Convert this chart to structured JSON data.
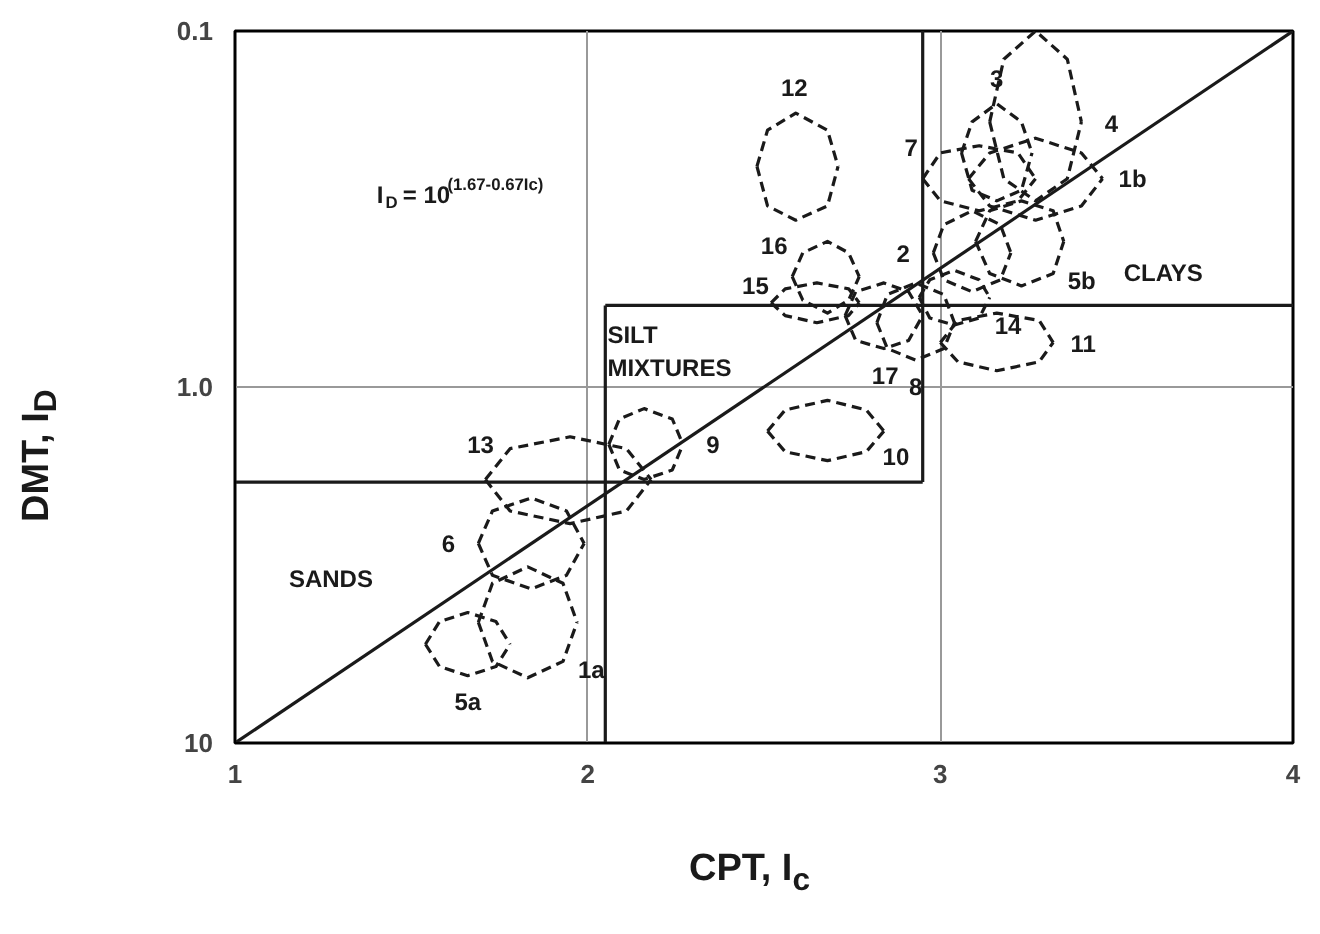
{
  "chart_data": {
    "type": "line",
    "xlabel": "CPT, I$_{c}$",
    "ylabel": "DMT, I$_{D}$",
    "log": "y",
    "xlim": [
      1,
      4
    ],
    "ylim": [
      10,
      0.1
    ],
    "xticks": [
      1,
      2,
      3,
      4
    ],
    "yticks": [
      0.1,
      {
        "value": 1,
        "label": "1.0"
      },
      10
    ],
    "grid": true,
    "series": [
      {
        "color": "#1a1a1a",
        "x": [
          1,
          2.95
        ],
        "values": [
          1.85,
          1.85
        ]
      },
      {
        "color": "#1a1a1a",
        "x": [
          2.05,
          2.05
        ],
        "values": [
          0.59,
          10
        ]
      },
      {
        "color": "#1a1a1a",
        "x": [
          2.05,
          4
        ],
        "values": [
          0.59,
          0.59
        ]
      },
      {
        "color": "#1a1a1a",
        "x": [
          2.95,
          2.95
        ],
        "values": [
          0.1,
          1.85
        ]
      },
      {
        "color": "#1a1a1a",
        "x": [
          1,
          4
        ],
        "values": [
          10,
          0.1
        ]
      },
      {
        "color": "#1a1a1a",
        "line_style": "dashed",
        "x": [
          3.08,
          3.14,
          3.27,
          3.4,
          3.46
        ],
        "values": [
          0.26,
          0.22,
          0.2,
          0.22,
          0.26
        ]
      },
      {
        "color": "#1a1a1a",
        "line_style": "dashed",
        "x": [
          3.08,
          3.14,
          3.27,
          3.4,
          3.46
        ],
        "values": [
          0.26,
          0.31,
          0.34,
          0.31,
          0.26
        ]
      },
      {
        "color": "#1a1a1a",
        "line_style": "dashed",
        "x": [
          3.06,
          3.09,
          3.16,
          3.23,
          3.26
        ],
        "values": [
          0.22,
          0.18,
          0.16,
          0.18,
          0.22
        ]
      },
      {
        "color": "#1a1a1a",
        "line_style": "dashed",
        "x": [
          3.06,
          3.09,
          3.16,
          3.23,
          3.26
        ],
        "values": [
          0.22,
          0.28,
          0.3,
          0.28,
          0.22
        ]
      },
      {
        "color": "#1a1a1a",
        "line_style": "dashed",
        "x": [
          2.95,
          3.0,
          3.11,
          3.22,
          3.27
        ],
        "values": [
          0.26,
          0.22,
          0.21,
          0.22,
          0.26
        ]
      },
      {
        "color": "#1a1a1a",
        "line_style": "dashed",
        "x": [
          2.95,
          3.0,
          3.11,
          3.22,
          3.27
        ],
        "values": [
          0.26,
          0.3,
          0.32,
          0.3,
          0.26
        ]
      },
      {
        "color": "#1a1a1a",
        "line_style": "dashed",
        "x": [
          3.14,
          3.18,
          3.27,
          3.36,
          3.4
        ],
        "values": [
          0.18,
          0.12,
          0.1,
          0.12,
          0.18
        ]
      },
      {
        "color": "#1a1a1a",
        "line_style": "dashed",
        "x": [
          3.14,
          3.18,
          3.27,
          3.36,
          3.4
        ],
        "values": [
          0.18,
          0.26,
          0.3,
          0.26,
          0.18
        ]
      },
      {
        "color": "#1a1a1a",
        "line_style": "dashed",
        "x": [
          2.48,
          2.51,
          2.59,
          2.68,
          2.71
        ],
        "values": [
          0.24,
          0.19,
          0.17,
          0.19,
          0.24
        ]
      },
      {
        "color": "#1a1a1a",
        "line_style": "dashed",
        "x": [
          2.48,
          2.51,
          2.59,
          2.68,
          2.71
        ],
        "values": [
          0.24,
          0.31,
          0.34,
          0.31,
          0.24
        ]
      },
      {
        "color": "#1a1a1a",
        "line_style": "dashed",
        "x": [
          2.98,
          3.01,
          3.09,
          3.17,
          3.2
        ],
        "values": [
          0.42,
          0.35,
          0.32,
          0.35,
          0.42
        ]
      },
      {
        "color": "#1a1a1a",
        "line_style": "dashed",
        "x": [
          2.98,
          3.01,
          3.09,
          3.17,
          3.2
        ],
        "values": [
          0.42,
          0.5,
          0.54,
          0.5,
          0.42
        ]
      },
      {
        "color": "#1a1a1a",
        "line_style": "dashed",
        "x": [
          3.1,
          3.14,
          3.23,
          3.32,
          3.35
        ],
        "values": [
          0.39,
          0.32,
          0.3,
          0.32,
          0.39
        ]
      },
      {
        "color": "#1a1a1a",
        "line_style": "dashed",
        "x": [
          3.1,
          3.14,
          3.23,
          3.32,
          3.35
        ],
        "values": [
          0.39,
          0.48,
          0.52,
          0.48,
          0.39
        ]
      },
      {
        "color": "#1a1a1a",
        "line_style": "dashed",
        "x": [
          2.58,
          2.61,
          2.68,
          2.74,
          2.77
        ],
        "values": [
          0.49,
          0.42,
          0.39,
          0.42,
          0.49
        ]
      },
      {
        "color": "#1a1a1a",
        "line_style": "dashed",
        "x": [
          2.58,
          2.61,
          2.68,
          2.74,
          2.77
        ],
        "values": [
          0.49,
          0.57,
          0.62,
          0.57,
          0.49
        ]
      },
      {
        "color": "#1a1a1a",
        "line_style": "dashed",
        "x": [
          2.52,
          2.56,
          2.65,
          2.74,
          2.77
        ],
        "values": [
          0.58,
          0.53,
          0.51,
          0.53,
          0.58
        ]
      },
      {
        "color": "#1a1a1a",
        "line_style": "dashed",
        "x": [
          2.52,
          2.56,
          2.65,
          2.74,
          2.77
        ],
        "values": [
          0.58,
          0.63,
          0.66,
          0.63,
          0.58
        ]
      },
      {
        "color": "#1a1a1a",
        "line_style": "dashed",
        "x": [
          2.73,
          2.76,
          2.84,
          2.91,
          2.95
        ],
        "values": [
          0.63,
          0.54,
          0.51,
          0.54,
          0.63
        ]
      },
      {
        "color": "#1a1a1a",
        "line_style": "dashed",
        "x": [
          2.73,
          2.76,
          2.84,
          2.91,
          2.95
        ],
        "values": [
          0.63,
          0.74,
          0.78,
          0.74,
          0.63
        ]
      },
      {
        "color": "#1a1a1a",
        "line_style": "dashed",
        "x": [
          2.82,
          2.85,
          2.93,
          3.01,
          3.04
        ],
        "values": [
          0.66,
          0.55,
          0.51,
          0.55,
          0.66
        ]
      },
      {
        "color": "#1a1a1a",
        "line_style": "dashed",
        "x": [
          2.82,
          2.85,
          2.93,
          3.01,
          3.04
        ],
        "values": [
          0.66,
          0.78,
          0.84,
          0.78,
          0.66
        ]
      },
      {
        "color": "#1a1a1a",
        "line_style": "dashed",
        "x": [
          2.94,
          2.97,
          3.04,
          3.11,
          3.14
        ],
        "values": [
          0.56,
          0.5,
          0.47,
          0.5,
          0.56
        ]
      },
      {
        "color": "#1a1a1a",
        "line_style": "dashed",
        "x": [
          2.94,
          2.97,
          3.04,
          3.11,
          3.14
        ],
        "values": [
          0.56,
          0.64,
          0.67,
          0.64,
          0.56
        ]
      },
      {
        "color": "#1a1a1a",
        "line_style": "dashed",
        "x": [
          3.0,
          3.05,
          3.16,
          3.28,
          3.32
        ],
        "values": [
          0.75,
          0.65,
          0.62,
          0.65,
          0.75
        ]
      },
      {
        "color": "#1a1a1a",
        "line_style": "dashed",
        "x": [
          3.0,
          3.05,
          3.16,
          3.28,
          3.32
        ],
        "values": [
          0.75,
          0.85,
          0.9,
          0.85,
          0.75
        ]
      },
      {
        "color": "#1a1a1a",
        "line_style": "dashed",
        "x": [
          2.51,
          2.56,
          2.68,
          2.79,
          2.84
        ],
        "values": [
          1.33,
          1.16,
          1.09,
          1.16,
          1.33
        ]
      },
      {
        "color": "#1a1a1a",
        "line_style": "dashed",
        "x": [
          2.51,
          2.56,
          2.68,
          2.79,
          2.84
        ],
        "values": [
          1.33,
          1.52,
          1.61,
          1.52,
          1.33
        ]
      },
      {
        "color": "#1a1a1a",
        "line_style": "dashed",
        "x": [
          2.06,
          2.09,
          2.16,
          2.24,
          2.27
        ],
        "values": [
          1.45,
          1.23,
          1.15,
          1.23,
          1.45
        ]
      },
      {
        "color": "#1a1a1a",
        "line_style": "dashed",
        "x": [
          2.06,
          2.09,
          2.16,
          2.24,
          2.27
        ],
        "values": [
          1.45,
          1.71,
          1.82,
          1.71,
          1.45
        ]
      },
      {
        "color": "#1a1a1a",
        "line_style": "dashed",
        "x": [
          1.71,
          1.78,
          1.95,
          2.11,
          2.18
        ],
        "values": [
          1.82,
          1.49,
          1.38,
          1.49,
          1.82
        ]
      },
      {
        "color": "#1a1a1a",
        "line_style": "dashed",
        "x": [
          1.71,
          1.78,
          1.95,
          2.11,
          2.18
        ],
        "values": [
          1.82,
          2.23,
          2.42,
          2.23,
          1.82
        ]
      },
      {
        "color": "#1a1a1a",
        "line_style": "dashed",
        "x": [
          1.69,
          1.73,
          1.84,
          1.94,
          1.99
        ],
        "values": [
          2.75,
          2.23,
          2.05,
          2.23,
          2.75
        ]
      },
      {
        "color": "#1a1a1a",
        "line_style": "dashed",
        "x": [
          1.69,
          1.73,
          1.84,
          1.94,
          1.99
        ],
        "values": [
          2.75,
          3.38,
          3.69,
          3.38,
          2.75
        ]
      },
      {
        "color": "#1a1a1a",
        "line_style": "dashed",
        "x": [
          1.69,
          1.73,
          1.83,
          1.93,
          1.97
        ],
        "values": [
          4.58,
          3.56,
          3.2,
          3.56,
          4.58
        ]
      },
      {
        "color": "#1a1a1a",
        "line_style": "dashed",
        "x": [
          1.69,
          1.73,
          1.83,
          1.93,
          1.97
        ],
        "values": [
          4.58,
          5.9,
          6.56,
          5.9,
          4.58
        ]
      },
      {
        "color": "#1a1a1a",
        "line_style": "dashed",
        "x": [
          1.54,
          1.58,
          1.66,
          1.74,
          1.78
        ],
        "values": [
          5.28,
          4.56,
          4.3,
          4.56,
          5.28
        ]
      },
      {
        "color": "#1a1a1a",
        "line_style": "dashed",
        "x": [
          1.54,
          1.58,
          1.66,
          1.74,
          1.78
        ],
        "values": [
          5.28,
          6.1,
          6.47,
          6.1,
          5.28
        ]
      }
    ],
    "annotations": [
      {
        "text": "1b",
        "x": 3.46,
        "y": 0.26
      },
      {
        "text": "3",
        "x": 3.16,
        "y": 0.16
      },
      {
        "text": "7",
        "x": 3.0,
        "y": 0.22
      },
      {
        "text": "4",
        "x": 3.4,
        "y": 0.18
      },
      {
        "text": "12",
        "x": 2.59,
        "y": 0.17
      },
      {
        "text": "2",
        "x": 2.98,
        "y": 0.42
      },
      {
        "text": "5b",
        "x": 3.32,
        "y": 0.48
      },
      {
        "text": "16",
        "x": 2.61,
        "y": 0.42
      },
      {
        "text": "15",
        "x": 2.56,
        "y": 0.53
      },
      {
        "text": "17",
        "x": 2.84,
        "y": 0.78
      },
      {
        "text": "8",
        "x": 2.93,
        "y": 0.84
      },
      {
        "text": "14",
        "x": 3.11,
        "y": 0.64
      },
      {
        "text": "11",
        "x": 3.32,
        "y": 0.75
      },
      {
        "text": "10",
        "x": 2.79,
        "y": 1.52
      },
      {
        "text": "9",
        "x": 2.27,
        "y": 1.45
      },
      {
        "text": "13",
        "x": 1.78,
        "y": 1.49
      },
      {
        "text": "6",
        "x": 1.69,
        "y": 2.75
      },
      {
        "text": "1a",
        "x": 1.93,
        "y": 5.9
      },
      {
        "text": "5a",
        "x": 1.66,
        "y": 6.47
      },
      "SANDS",
      "CLAYS",
      "SILT\nMIXTURES",
      "I$_{D}$ = 10$^{(1.67-0.67Ic)}$"
    ]
  }
}
